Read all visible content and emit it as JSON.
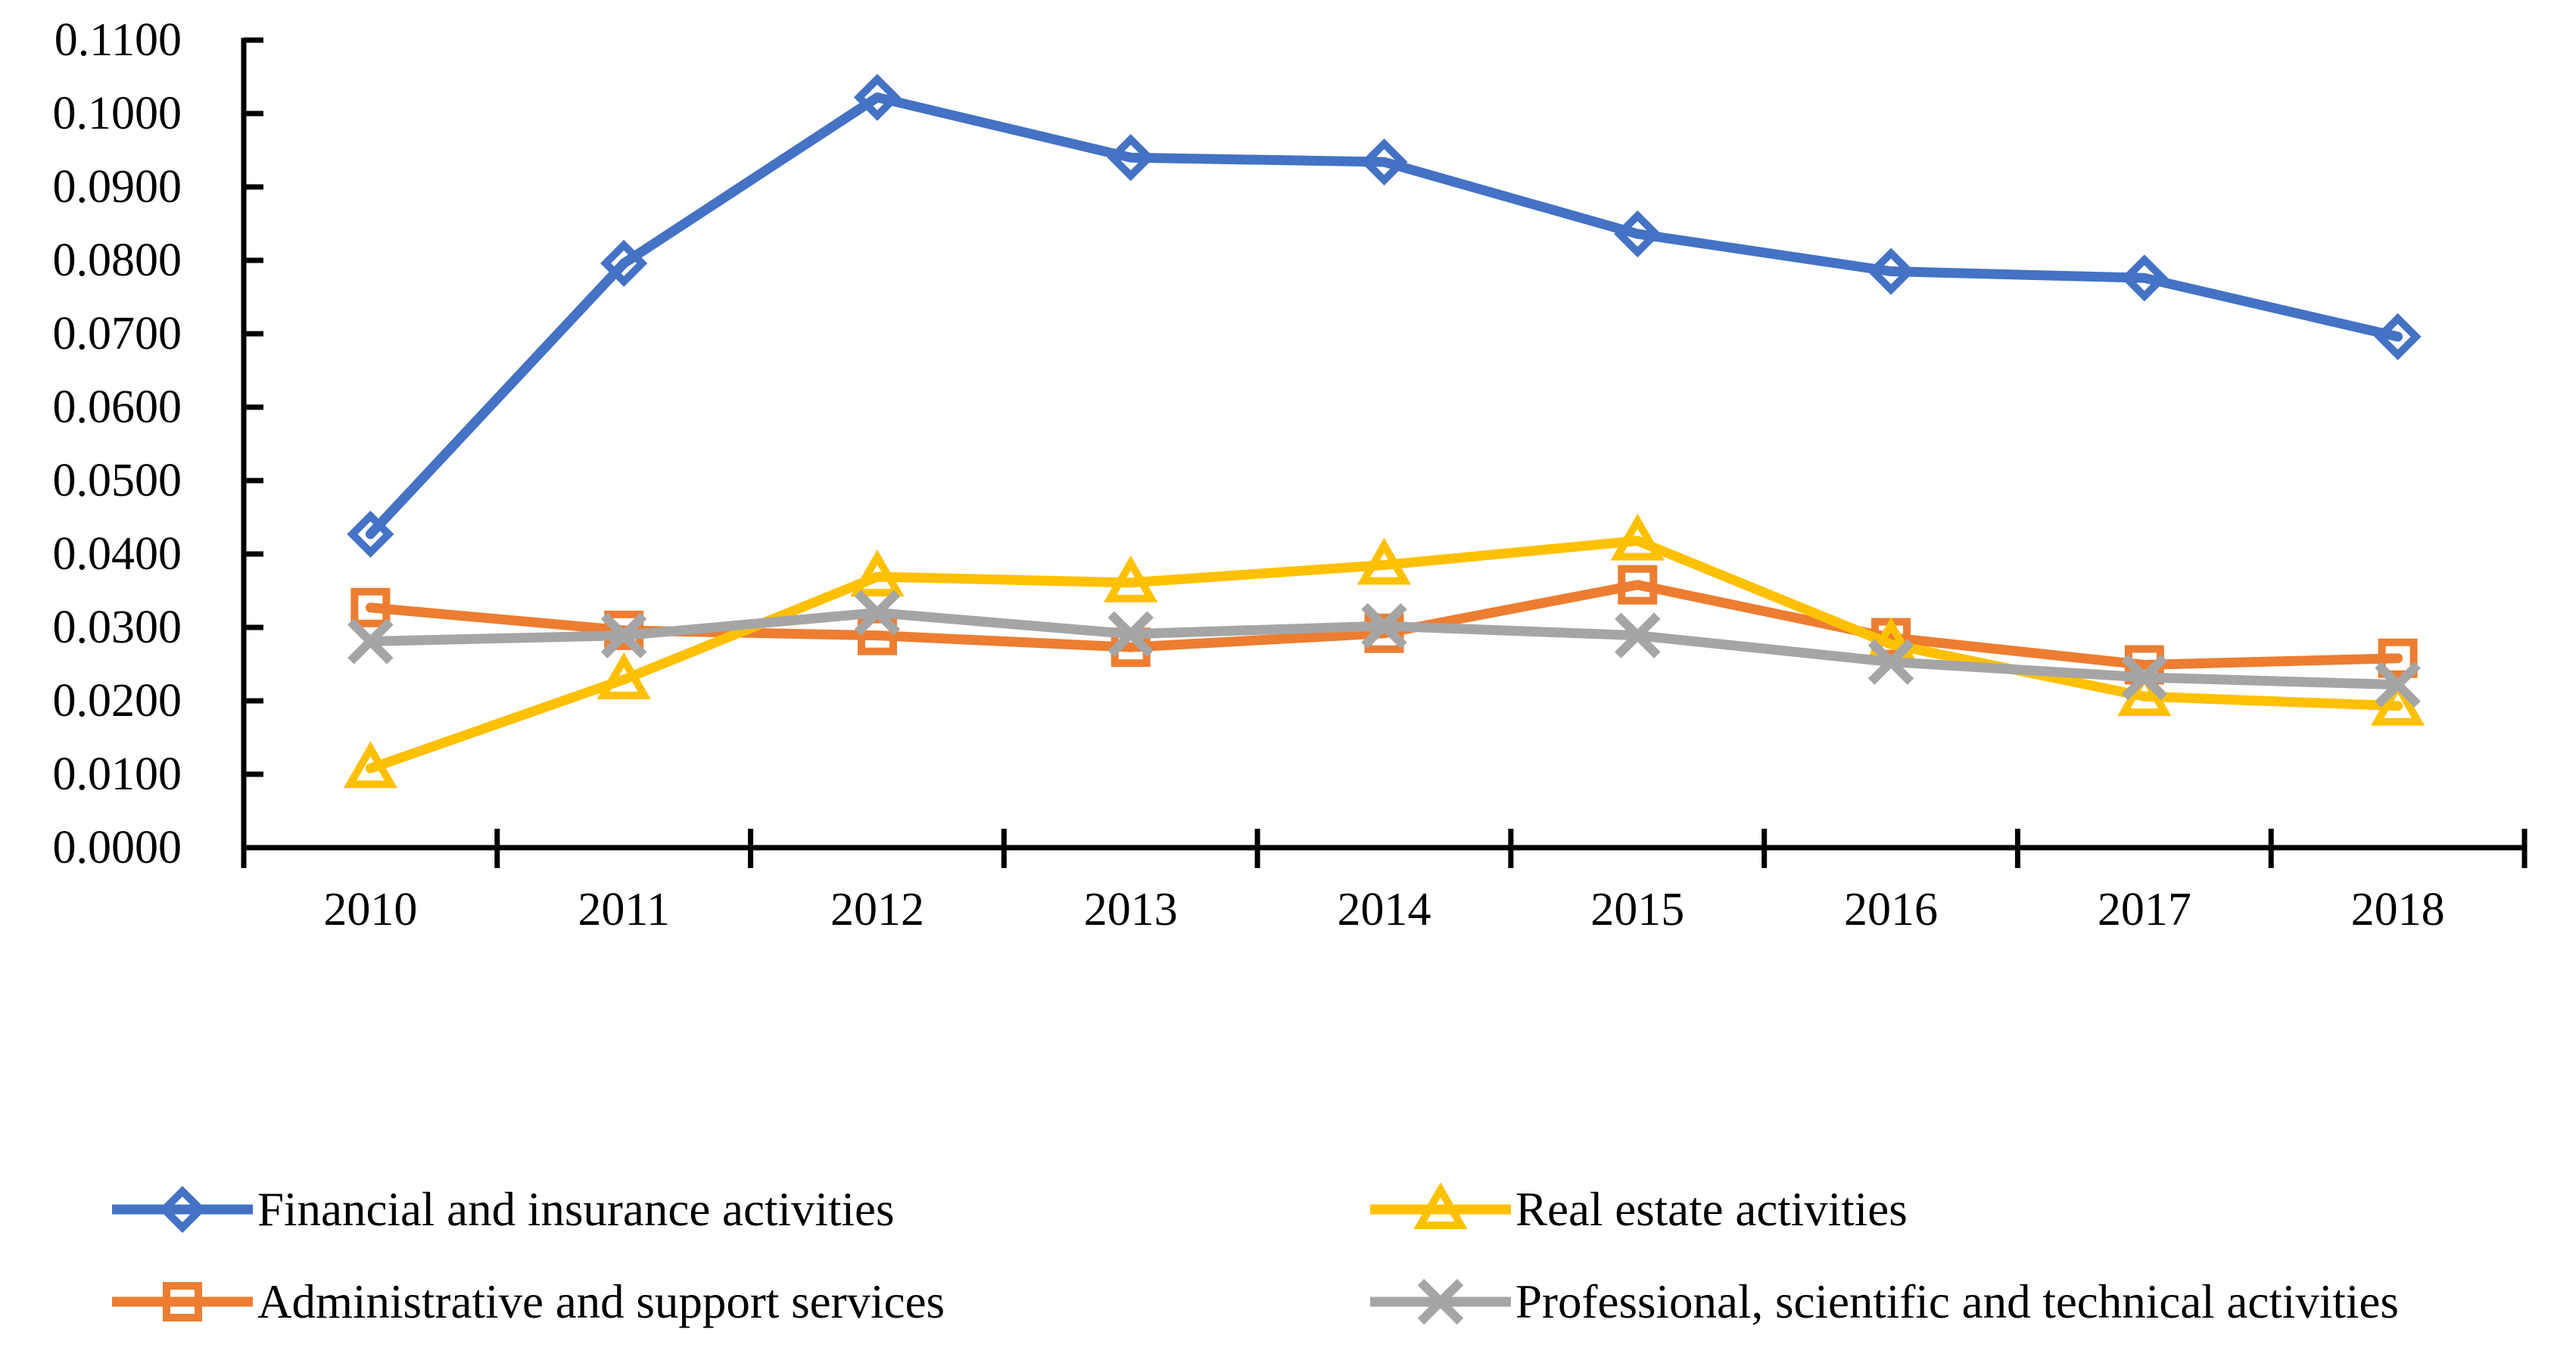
{
  "chart_data": {
    "type": "line",
    "title": "",
    "xlabel": "",
    "ylabel": "",
    "categories": [
      "2010",
      "2011",
      "2012",
      "2013",
      "2014",
      "2015",
      "2016",
      "2017",
      "2018"
    ],
    "series": [
      {
        "name": "Financial and insurance activities",
        "marker": "diamond",
        "color": "#4472C4",
        "values": [
          0.0427,
          0.0796,
          0.1022,
          0.094,
          0.0934,
          0.0836,
          0.0785,
          0.0776,
          0.0696
        ]
      },
      {
        "name": "Administrative and support services",
        "marker": "square",
        "color": "#ED7D31",
        "values": [
          0.0327,
          0.0296,
          0.0289,
          0.0273,
          0.0292,
          0.0358,
          0.0286,
          0.0249,
          0.0258
        ]
      },
      {
        "name": "Real estate activities",
        "marker": "triangle",
        "color": "#FFC000",
        "values": [
          0.0108,
          0.0229,
          0.0369,
          0.0361,
          0.0385,
          0.0418,
          0.0277,
          0.0206,
          0.0193
        ]
      },
      {
        "name": "Professional, scientific and technical activities",
        "marker": "x",
        "color": "#A5A5A5",
        "values": [
          0.0281,
          0.0289,
          0.032,
          0.0291,
          0.0302,
          0.0289,
          0.0253,
          0.0232,
          0.0222
        ]
      }
    ],
    "ylim": [
      0,
      0.11
    ],
    "ytick_step": 0.01,
    "ytick_decimals": 4,
    "ytick_labels": [
      "0.0000",
      "0.0100",
      "0.0200",
      "0.0300",
      "0.0400",
      "0.0500",
      "0.0600",
      "0.0700",
      "0.0800",
      "0.0900",
      "0.1000",
      "0.1100"
    ],
    "grid": false,
    "axis_color": "#000000",
    "legend_position": "bottom",
    "legend_columns": 2,
    "legend_order_left_column": [
      "Financial and insurance activities",
      "Administrative and support services"
    ],
    "legend_order_right_column": [
      "Real estate activities",
      "Professional, scientific and technical activities"
    ]
  }
}
